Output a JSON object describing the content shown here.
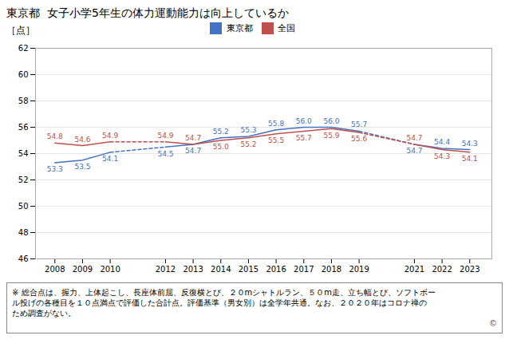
{
  "chart_data": {
    "type": "line",
    "title": "東京都  女子小学5年生の体力運動能力は向上しているか",
    "ylabel": "［点］",
    "x": [
      2008,
      2009,
      2010,
      2012,
      2013,
      2014,
      2015,
      2016,
      2017,
      2018,
      2019,
      2021,
      2022,
      2023
    ],
    "series": [
      {
        "name": "東京都",
        "color": "#4472C4",
        "values": [
          53.3,
          53.5,
          54.1,
          54.5,
          54.7,
          55.2,
          55.3,
          55.8,
          56.0,
          56.0,
          55.7,
          54.7,
          54.4,
          54.3
        ],
        "value_labels": [
          "53.3",
          "53.5",
          "54.1",
          "54.5",
          "54.7",
          "55.2",
          "55.3",
          "55.8",
          "56.0",
          "56.0",
          "55.7",
          "54.7",
          "54.4",
          "54.3"
        ]
      },
      {
        "name": "全国",
        "color": "#C0504D",
        "values": [
          54.8,
          54.6,
          54.9,
          54.9,
          54.7,
          55.0,
          55.2,
          55.5,
          55.7,
          55.9,
          55.6,
          54.7,
          54.3,
          54.1
        ],
        "value_labels": [
          "54.8",
          "54.6",
          "54.9",
          "54.9",
          "54.7",
          "55.0",
          "55.2",
          "55.5",
          "55.7",
          "55.9",
          "55.6",
          "54.7",
          "54.3",
          "54.1"
        ]
      }
    ],
    "xlim": [
      2007.3,
      2023.8
    ],
    "xticks": [
      2008,
      2009,
      2010,
      2012,
      2013,
      2014,
      2015,
      2016,
      2017,
      2018,
      2019,
      2021,
      2022,
      2023
    ],
    "ylim": [
      46,
      62
    ],
    "yticks": [
      46,
      48,
      50,
      52,
      54,
      56,
      58,
      60,
      62
    ],
    "grid": true,
    "legend": "top",
    "data_labels": true,
    "annotations": [
      "※ 総合点は、握力、上体起こし、長座体前屈、反復横とび、２０mシャトルラン、５０m走、立ち幅とび、ソフトボー",
      "ル投げの各種目を１０点満点で評価した合計点。評価基準（男女別）は全学年共通。なお、２０２０年はコロナ禅の",
      "ため調査がない。",
      "©"
    ]
  }
}
